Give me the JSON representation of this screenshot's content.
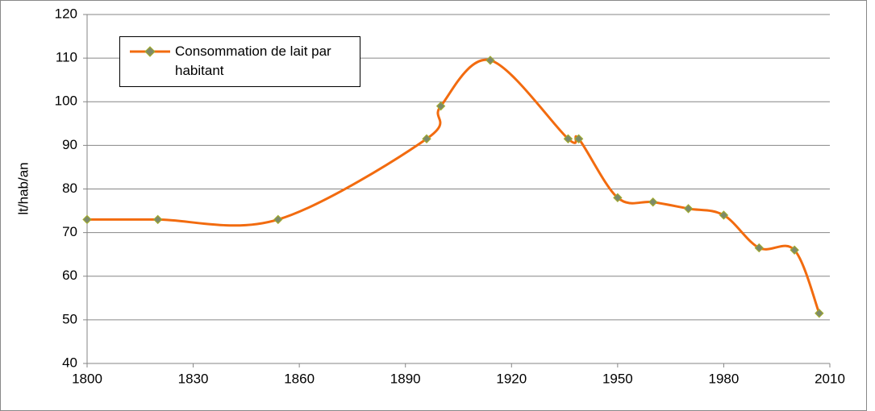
{
  "chart_data": {
    "type": "line",
    "y_label": "lt/hab/an",
    "x": [
      1800,
      1820,
      1854,
      1896,
      1900,
      1914,
      1936,
      1939,
      1950,
      1960,
      1970,
      1980,
      1990,
      2000,
      2007
    ],
    "series": [
      {
        "name": "Consommation de lait par habitant",
        "color": "#f26b0f",
        "marker_color": "#7d8a6a",
        "values": [
          73,
          73,
          73,
          91.5,
          99,
          109.5,
          91.5,
          91.5,
          78,
          77,
          75.5,
          74,
          66.5,
          66,
          51.5
        ]
      }
    ],
    "xlim": [
      1800,
      2010
    ],
    "xticks": [
      1800,
      1830,
      1860,
      1890,
      1920,
      1950,
      1980,
      2010
    ],
    "ylim": [
      40,
      120
    ],
    "yticks": [
      40,
      50,
      60,
      70,
      80,
      90,
      100,
      110,
      120
    ],
    "grid": true,
    "legend": "upper left"
  }
}
